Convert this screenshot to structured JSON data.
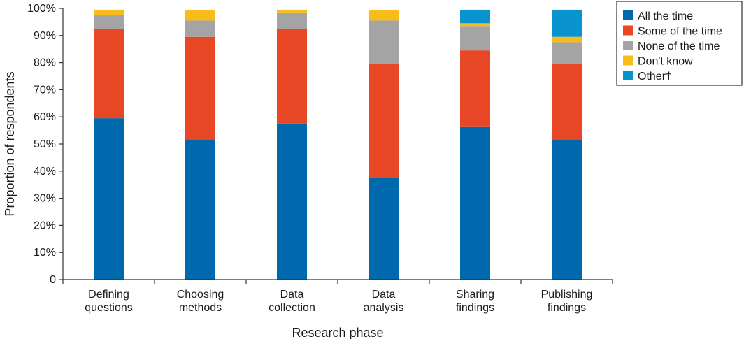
{
  "chart_data": {
    "type": "bar",
    "stacked": true,
    "title": "",
    "xlabel": "Research phase",
    "ylabel": "Proportion of respondents",
    "ylim": [
      0,
      100
    ],
    "yticks": [
      0,
      10,
      20,
      30,
      40,
      50,
      60,
      70,
      80,
      90,
      100
    ],
    "ytick_labels": [
      "0",
      "10%",
      "20%",
      "30%",
      "40%",
      "50%",
      "60%",
      "70%",
      "80%",
      "90%",
      "100%"
    ],
    "categories": [
      [
        "Defining",
        "questions"
      ],
      [
        "Choosing",
        "methods"
      ],
      [
        "Data",
        "collection"
      ],
      [
        "Data",
        "analysis"
      ],
      [
        "Sharing",
        "findings"
      ],
      [
        "Publishing",
        "findings"
      ]
    ],
    "series": [
      {
        "name": "All the time",
        "color": "#0068ad",
        "values": [
          59.5,
          51.5,
          57.5,
          37.5,
          56.5,
          51.5
        ]
      },
      {
        "name": "Some of the time",
        "color": "#e84726",
        "values": [
          33,
          38,
          35,
          42,
          28,
          28
        ]
      },
      {
        "name": "None of the time",
        "color": "#a4a4a4",
        "values": [
          5,
          6,
          6,
          16,
          9,
          8
        ]
      },
      {
        "name": "Don't know",
        "color": "#f9bd1b",
        "values": [
          2,
          4,
          1,
          4,
          1,
          2
        ]
      },
      {
        "name": "Other†",
        "color": "#0a94cf",
        "values": [
          0,
          0,
          0,
          0,
          5,
          10
        ]
      }
    ],
    "grid": false,
    "legend_position": "top-right"
  }
}
